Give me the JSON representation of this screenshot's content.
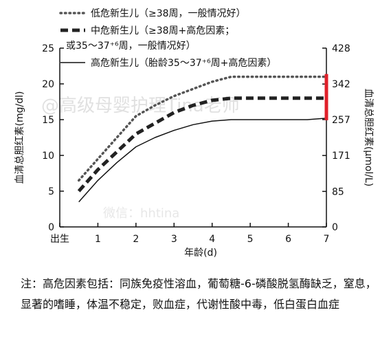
{
  "chart_data": {
    "type": "line",
    "xlabel": "年龄(d)",
    "ylabel": "血清总胆红素(mg/dl)",
    "y2label": "血清总胆红素(μmol/L)",
    "x_ticks": [
      {
        "x": 0,
        "label": "出生"
      },
      {
        "x": 1,
        "label": "1"
      },
      {
        "x": 2,
        "label": "2"
      },
      {
        "x": 3,
        "label": "3"
      },
      {
        "x": 4,
        "label": "4"
      },
      {
        "x": 5,
        "label": "5"
      },
      {
        "x": 6,
        "label": "6"
      },
      {
        "x": 7,
        "label": "7"
      }
    ],
    "xlim": [
      0,
      7
    ],
    "ylim": [
      0,
      25
    ],
    "y_ticks": [
      "0",
      "5",
      "10",
      "15",
      "20",
      "25"
    ],
    "y2_ticks": [
      {
        "value": 0,
        "label": "0"
      },
      {
        "value": 85,
        "label": "85"
      },
      {
        "value": 171,
        "label": "171"
      },
      {
        "value": 257,
        "label": "257"
      },
      {
        "value": 342,
        "label": "342"
      },
      {
        "value": 428,
        "label": "428"
      }
    ],
    "y2lim": [
      0,
      428
    ],
    "legend": "top",
    "grid": false,
    "series": [
      {
        "name": "低危新生儿（≥38周，一般情况好）",
        "style": "dotted",
        "color": "#555555",
        "x": [
          0.5,
          1,
          1.5,
          2,
          2.5,
          3,
          3.5,
          4,
          4.5,
          5,
          5.5,
          6,
          6.5,
          7
        ],
        "y": [
          6.5,
          9.5,
          12.5,
          15.5,
          17,
          18.3,
          19.3,
          20.3,
          21,
          21,
          21,
          21,
          21,
          21
        ]
      },
      {
        "name": "中危新生儿（≥38周+高危因素；或35～37⁺⁶周，一般情况好）",
        "style": "dashed",
        "color": "#222222",
        "x": [
          0.5,
          1,
          1.5,
          2,
          2.5,
          3,
          3.5,
          4,
          4.5,
          5,
          5.5,
          6,
          6.5,
          7
        ],
        "y": [
          5,
          8,
          10.5,
          13,
          14.5,
          16,
          17,
          17.7,
          18,
          18,
          18,
          18,
          18,
          18
        ]
      },
      {
        "name": "高危新生儿（胎龄35～37⁺⁶周+高危因素）",
        "style": "solid",
        "color": "#111111",
        "x": [
          0.5,
          1,
          1.5,
          2,
          2.5,
          3,
          3.5,
          4,
          4.5,
          5,
          5.5,
          6,
          6.5,
          7
        ],
        "y": [
          3.5,
          6.5,
          9,
          11.2,
          12.5,
          13.5,
          14.3,
          14.8,
          15,
          15,
          15,
          15,
          15,
          15.2
        ]
      }
    ],
    "highlight": {
      "x": 7,
      "y_from": 15.3,
      "y_to": 21,
      "color": "#e0202a"
    },
    "watermarks": [
      "@高级母婴护理Tina老师",
      "微信：hhtina"
    ]
  },
  "legend_items": {
    "low": {
      "name": "低危新生儿（≥38周，一般情况好）"
    },
    "mid": {
      "name": "中危新生儿（≥38周+高危因素；",
      "name_line2": "或35～37⁺⁶周，一般情况好）"
    },
    "high": {
      "name": "高危新生儿（胎龄35～37⁺⁶周+高危因素）"
    }
  },
  "note": "注：高危因素包括：同族免疫性溶血，葡萄糖-6-磷酸脱氢酶缺乏，窒息，显著的嗜睡，体温不稳定，败血症，代谢性酸中毒，低白蛋白血症"
}
